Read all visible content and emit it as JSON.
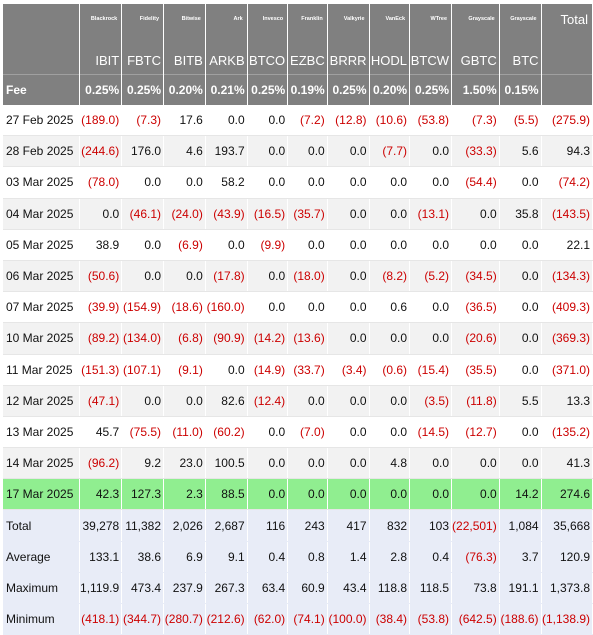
{
  "issuers": [
    "Blackrock",
    "Fidelity",
    "Bitwise",
    "Ark",
    "Invesco",
    "Franklin",
    "Valkyrie",
    "VanEck",
    "WTree",
    "Grayscale",
    "Grayscale"
  ],
  "total_header": "Total",
  "tickers": [
    "IBIT",
    "FBTC",
    "BITB",
    "ARKB",
    "BTCO",
    "EZBC",
    "BRRR",
    "HODL",
    "BTCW",
    "GBTC",
    "BTC"
  ],
  "fee": {
    "label": "Fee",
    "values": [
      "0.25%",
      "0.25%",
      "0.20%",
      "0.21%",
      "0.25%",
      "0.19%",
      "0.25%",
      "0.20%",
      "0.25%",
      "1.50%",
      "0.15%"
    ]
  },
  "rows": [
    {
      "label": "27 Feb 2025",
      "values": [
        "(189.0)",
        "(7.3)",
        "17.6",
        "0.0",
        "0.0",
        "(7.2)",
        "(12.8)",
        "(10.6)",
        "(53.8)",
        "(7.3)",
        "(5.5)"
      ],
      "total": "(275.9)"
    },
    {
      "label": "28 Feb 2025",
      "values": [
        "(244.6)",
        "176.0",
        "4.6",
        "193.7",
        "0.0",
        "0.0",
        "0.0",
        "(7.7)",
        "0.0",
        "(33.3)",
        "5.6"
      ],
      "total": "94.3"
    },
    {
      "label": "03 Mar 2025",
      "values": [
        "(78.0)",
        "0.0",
        "0.0",
        "58.2",
        "0.0",
        "0.0",
        "0.0",
        "0.0",
        "0.0",
        "(54.4)",
        "0.0"
      ],
      "total": "(74.2)"
    },
    {
      "label": "04 Mar 2025",
      "values": [
        "0.0",
        "(46.1)",
        "(24.0)",
        "(43.9)",
        "(16.5)",
        "(35.7)",
        "0.0",
        "0.0",
        "(13.1)",
        "0.0",
        "35.8"
      ],
      "total": "(143.5)"
    },
    {
      "label": "05 Mar 2025",
      "values": [
        "38.9",
        "0.0",
        "(6.9)",
        "0.0",
        "(9.9)",
        "0.0",
        "0.0",
        "0.0",
        "0.0",
        "0.0",
        "0.0"
      ],
      "total": "22.1"
    },
    {
      "label": "06 Mar 2025",
      "values": [
        "(50.6)",
        "0.0",
        "0.0",
        "(17.8)",
        "0.0",
        "(18.0)",
        "0.0",
        "(8.2)",
        "(5.2)",
        "(34.5)",
        "0.0"
      ],
      "total": "(134.3)"
    },
    {
      "label": "07 Mar 2025",
      "values": [
        "(39.9)",
        "(154.9)",
        "(18.6)",
        "(160.0)",
        "0.0",
        "0.0",
        "0.0",
        "0.6",
        "0.0",
        "(36.5)",
        "0.0"
      ],
      "total": "(409.3)"
    },
    {
      "label": "10 Mar 2025",
      "values": [
        "(89.2)",
        "(134.0)",
        "(6.8)",
        "(90.9)",
        "(14.2)",
        "(13.6)",
        "0.0",
        "0.0",
        "0.0",
        "(20.6)",
        "0.0"
      ],
      "total": "(369.3)"
    },
    {
      "label": "11 Mar 2025",
      "values": [
        "(151.3)",
        "(107.1)",
        "(9.1)",
        "0.0",
        "(14.9)",
        "(33.7)",
        "(3.4)",
        "(0.6)",
        "(15.4)",
        "(35.5)",
        "0.0"
      ],
      "total": "(371.0)"
    },
    {
      "label": "12 Mar 2025",
      "values": [
        "(47.1)",
        "0.0",
        "0.0",
        "82.6",
        "(12.4)",
        "0.0",
        "0.0",
        "0.0",
        "(3.5)",
        "(11.8)",
        "5.5"
      ],
      "total": "13.3"
    },
    {
      "label": "13 Mar 2025",
      "values": [
        "45.7",
        "(75.5)",
        "(11.0)",
        "(60.2)",
        "0.0",
        "(7.0)",
        "0.0",
        "0.0",
        "(14.5)",
        "(12.7)",
        "0.0"
      ],
      "total": "(135.2)"
    },
    {
      "label": "14 Mar 2025",
      "values": [
        "(96.2)",
        "9.2",
        "23.0",
        "100.5",
        "0.0",
        "0.0",
        "0.0",
        "4.8",
        "0.0",
        "0.0",
        "0.0"
      ],
      "total": "41.3"
    },
    {
      "label": "17 Mar 2025",
      "values": [
        "42.3",
        "127.3",
        "2.3",
        "88.5",
        "0.0",
        "0.0",
        "0.0",
        "0.0",
        "0.0",
        "0.0",
        "14.2"
      ],
      "total": "274.6"
    }
  ],
  "summary": [
    {
      "label": "Total",
      "values": [
        "39,278",
        "11,382",
        "2,026",
        "2,687",
        "116",
        "243",
        "417",
        "832",
        "103",
        "(22,501)",
        "1,084"
      ],
      "total": "35,668"
    },
    {
      "label": "Average",
      "values": [
        "133.1",
        "38.6",
        "6.9",
        "9.1",
        "0.4",
        "0.8",
        "1.4",
        "2.8",
        "0.4",
        "(76.3)",
        "3.7"
      ],
      "total": "120.9"
    },
    {
      "label": "Maximum",
      "values": [
        "1,119.9",
        "473.4",
        "237.9",
        "267.3",
        "63.4",
        "60.9",
        "43.4",
        "118.8",
        "118.5",
        "73.8",
        "191.1"
      ],
      "total": "1,373.8"
    },
    {
      "label": "Minimum",
      "values": [
        "(418.1)",
        "(344.7)",
        "(280.7)",
        "(212.6)",
        "(62.0)",
        "(74.1)",
        "(100.0)",
        "(38.4)",
        "(53.8)",
        "(642.5)",
        "(188.6)"
      ],
      "total": "(1,138.9)"
    }
  ],
  "colors": {
    "header_bg": "#808080",
    "negative": "#cc0000",
    "highlight_row": "#90ee90",
    "summary_bg": "#e8ecf7"
  }
}
